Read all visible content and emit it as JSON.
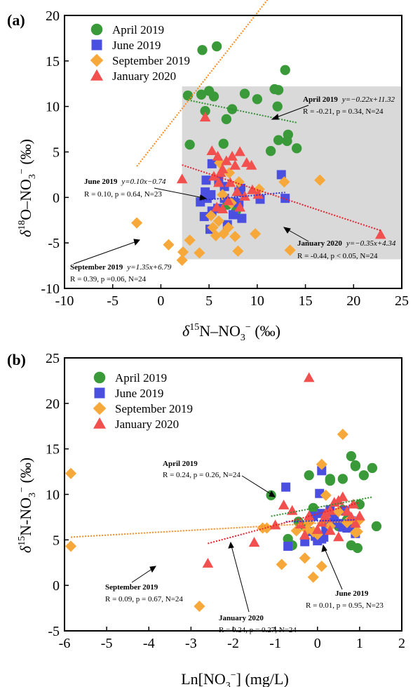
{
  "colors": {
    "april": "#3a9a3a",
    "june": "#4b4fe0",
    "september": "#f6a83a",
    "january": "#f2504e",
    "band": "#d9d9d9",
    "trend_april": "#2f8f2f",
    "trend_june": "#2f2fd0",
    "trend_september": "#ff8a1e",
    "trend_january": "#e8202a"
  },
  "chart_data": [
    {
      "panel": "(a)",
      "type": "scatter",
      "xlim": [
        -10,
        25
      ],
      "ylim": [
        -10,
        20
      ],
      "xticks": [
        -10,
        -5,
        0,
        5,
        10,
        15,
        20,
        25
      ],
      "yticks": [
        -10,
        -5,
        0,
        5,
        10,
        15,
        20
      ],
      "xlabel": {
        "pre": "δ",
        "sup": "15",
        "mid": "N–NO",
        "sub": "3",
        "sup2": "−",
        "post": " (‰)"
      },
      "ylabel": {
        "pre": "δ",
        "sup": "18",
        "mid": "O–NO",
        "sub": "3",
        "sup2": "−",
        "post": " (‰)"
      },
      "band": {
        "y_from": -6.8,
        "y_to": 12.2,
        "x_from": 2.2
      },
      "legend": [
        "April 2019",
        "June 2019",
        "September 2019",
        "January 2020"
      ],
      "series": [
        {
          "name": "April 2019",
          "marker": "circle",
          "points": [
            [
              4.3,
              16.2
            ],
            [
              5.8,
              16.6
            ],
            [
              2.8,
              11.2
            ],
            [
              4.2,
              11.3
            ],
            [
              5.0,
              11.7
            ],
            [
              5.5,
              11.1
            ],
            [
              8.7,
              11.4
            ],
            [
              10.0,
              10.8
            ],
            [
              11.8,
              11.9
            ],
            [
              12.2,
              11.8
            ],
            [
              12.9,
              14.0
            ],
            [
              7.4,
              9.7
            ],
            [
              6.8,
              8.6
            ],
            [
              12.1,
              10.0
            ],
            [
              4.6,
              9.5
            ],
            [
              3.0,
              5.8
            ],
            [
              6.5,
              5.9
            ],
            [
              11.4,
              5.1
            ],
            [
              12.2,
              6.3
            ],
            [
              13.2,
              6.9
            ],
            [
              13.1,
              6.2
            ],
            [
              14.1,
              5.4
            ],
            [
              6.9,
              -0.8
            ],
            [
              7.8,
              -1.5
            ]
          ]
        },
        {
          "name": "June 2019",
          "marker": "square",
          "points": [
            [
              5.3,
              3.7
            ],
            [
              4.7,
              1.9
            ],
            [
              6.0,
              1.8
            ],
            [
              6.6,
              1.2
            ],
            [
              12.5,
              2.5
            ],
            [
              8.3,
              1.0
            ],
            [
              8.1,
              0.6
            ],
            [
              4.6,
              0.6
            ],
            [
              5.2,
              0.3
            ],
            [
              4.8,
              -0.1
            ],
            [
              4.1,
              -0.5
            ],
            [
              6.6,
              -0.1
            ],
            [
              7.6,
              -0.5
            ],
            [
              8.1,
              -0.6
            ],
            [
              10.3,
              -0.2
            ],
            [
              12.9,
              -0.1
            ],
            [
              5.3,
              -1.5
            ],
            [
              4.5,
              -2.1
            ],
            [
              5.9,
              -1.2
            ],
            [
              7.5,
              -1.9
            ],
            [
              5.1,
              -3.5
            ],
            [
              6.9,
              -3.0
            ],
            [
              8.4,
              -2.3
            ]
          ]
        },
        {
          "name": "September 2019",
          "marker": "diamond",
          "points": [
            [
              -2.5,
              -2.8
            ],
            [
              0.8,
              -5.2
            ],
            [
              2.2,
              -6.9
            ],
            [
              2.3,
              -6.0
            ],
            [
              3.0,
              -4.7
            ],
            [
              4.0,
              -6.1
            ],
            [
              5.4,
              -3.3
            ],
            [
              5.7,
              -4.2
            ],
            [
              6.0,
              -2.6
            ],
            [
              6.5,
              -4.0
            ],
            [
              5.2,
              -2.0
            ],
            [
              7.0,
              -3.3
            ],
            [
              7.7,
              -4.3
            ],
            [
              8.0,
              -5.9
            ],
            [
              9.8,
              -4.0
            ],
            [
              6.1,
              3.8
            ],
            [
              7.1,
              2.7
            ],
            [
              8.1,
              1.7
            ],
            [
              6.4,
              0.3
            ],
            [
              7.3,
              -0.6
            ],
            [
              13.4,
              -5.8
            ],
            [
              12.8,
              1.7
            ],
            [
              16.5,
              1.9
            ],
            [
              10.2,
              0.9
            ]
          ]
        },
        {
          "name": "January 2020",
          "marker": "triangle",
          "points": [
            [
              4.6,
              8.8
            ],
            [
              2.2,
              2.0
            ],
            [
              5.3,
              5.1
            ],
            [
              5.9,
              4.5
            ],
            [
              6.8,
              4.0
            ],
            [
              7.4,
              4.5
            ],
            [
              8.2,
              5.0
            ],
            [
              7.7,
              3.5
            ],
            [
              8.9,
              3.8
            ],
            [
              9.4,
              3.5
            ],
            [
              6.4,
              3.1
            ],
            [
              5.5,
              2.3
            ],
            [
              6.2,
              2.7
            ],
            [
              7.2,
              1.6
            ],
            [
              6.0,
              1.6
            ],
            [
              7.9,
              0.6
            ],
            [
              9.5,
              0.8
            ],
            [
              8.7,
              0.1
            ],
            [
              7.0,
              -0.4
            ],
            [
              5.8,
              -1.1
            ],
            [
              6.4,
              -1.3
            ],
            [
              8.2,
              -1.1
            ],
            [
              10.1,
              0.3
            ],
            [
              22.8,
              -4.1
            ]
          ]
        }
      ],
      "trends": [
        {
          "name": "April 2019",
          "x": [
            2.8,
            14.1
          ],
          "eq_lbl": "April 2019",
          "eq": "y=−0.22x+11.32",
          "stats": "R = -0.21, p = 0.34, N=24"
        },
        {
          "name": "June 2019",
          "x": [
            4.1,
            12.9
          ],
          "eq_lbl": "June 2019",
          "eq": "y=0.10x−0.74",
          "stats": "R = 0.10, p = 0.64,  N=23"
        },
        {
          "name": "September 2019",
          "x": [
            -2.5,
            16.5
          ],
          "eq_lbl": "September 2019",
          "eq": "y=1.35x+6.79",
          "stats": "R = 0.39, p =0.06, N=24"
        },
        {
          "name": "January 2020",
          "x": [
            2.2,
            22.8
          ],
          "eq_lbl": "January 2020",
          "eq": "y=−0.35x+4.34",
          "stats": "R = -0.44, p < 0.05, N=24"
        }
      ]
    },
    {
      "panel": "(b)",
      "type": "scatter",
      "xlim": [
        -6,
        2
      ],
      "ylim": [
        -5,
        25
      ],
      "xticks": [
        -6,
        -5,
        -4,
        -3,
        -2,
        -1,
        0,
        1,
        2
      ],
      "yticks": [
        -5,
        0,
        5,
        10,
        15,
        20,
        25
      ],
      "xlabel": {
        "pre": "Ln[NO",
        "sub": "3",
        "sup2": "−",
        "post": "] (mg/L)"
      },
      "ylabel": {
        "pre": "δ",
        "sup": "15",
        "mid": "N-NO",
        "sub": "3",
        "sup2": "−",
        "post": " (‰)"
      },
      "legend": [
        "April 2019",
        "June 2019",
        "September 2019",
        "January 2020"
      ],
      "series": [
        {
          "name": "April 2019",
          "marker": "circle",
          "points": [
            [
              -1.1,
              9.9
            ],
            [
              -0.7,
              5.1
            ],
            [
              -0.6,
              4.4
            ],
            [
              -0.2,
              12.1
            ],
            [
              0.3,
              11.7
            ],
            [
              0.3,
              11.5
            ],
            [
              0.8,
              14.2
            ],
            [
              0.9,
              13.2
            ],
            [
              0.9,
              13.1
            ],
            [
              1.1,
              12.1
            ],
            [
              1.3,
              12.9
            ],
            [
              0.6,
              11.7
            ],
            [
              -0.45,
              7.0
            ],
            [
              -0.3,
              6.5
            ],
            [
              -0.1,
              8.5
            ],
            [
              0.2,
              7.0
            ],
            [
              0.6,
              8.3
            ],
            [
              0.7,
              7.2
            ],
            [
              1.0,
              8.9
            ],
            [
              0.5,
              6.5
            ],
            [
              0.8,
              4.4
            ],
            [
              0.95,
              4.1
            ],
            [
              1.4,
              6.5
            ],
            [
              -0.05,
              5.7
            ]
          ]
        },
        {
          "name": "June 2019",
          "marker": "square",
          "points": [
            [
              -0.75,
              10.8
            ],
            [
              0.1,
              12.6
            ],
            [
              0.05,
              10.1
            ],
            [
              -0.3,
              4.8
            ],
            [
              -0.7,
              4.3
            ],
            [
              -0.1,
              7.6
            ],
            [
              0.1,
              5.1
            ],
            [
              0.2,
              6.1
            ],
            [
              0.3,
              8.3
            ],
            [
              0.5,
              6.8
            ],
            [
              0.65,
              8.2
            ],
            [
              0.7,
              6.3
            ],
            [
              0.8,
              7.1
            ],
            [
              0.0,
              4.9
            ],
            [
              -0.05,
              5.4
            ],
            [
              0.15,
              5.3
            ],
            [
              0.4,
              7.7
            ],
            [
              0.9,
              5.7
            ],
            [
              0.6,
              6.4
            ],
            [
              0.3,
              6.9
            ],
            [
              -0.2,
              5.9
            ],
            [
              0.1,
              7.9
            ],
            [
              0.85,
              6.6
            ]
          ]
        },
        {
          "name": "September 2019",
          "marker": "diamond",
          "points": [
            [
              -5.85,
              12.3
            ],
            [
              -5.85,
              4.3
            ],
            [
              -2.8,
              -2.3
            ],
            [
              -1.3,
              6.3
            ],
            [
              -1.2,
              6.3
            ],
            [
              -0.85,
              2.3
            ],
            [
              -0.5,
              6.0
            ],
            [
              -0.3,
              3.0
            ],
            [
              -0.2,
              6.9
            ],
            [
              -0.1,
              5.9
            ],
            [
              0.1,
              13.3
            ],
            [
              0.2,
              9.9
            ],
            [
              0.3,
              6.5
            ],
            [
              0.5,
              8.1
            ],
            [
              0.6,
              16.6
            ],
            [
              0.7,
              6.9
            ],
            [
              0.8,
              7.3
            ],
            [
              0.9,
              5.8
            ],
            [
              1.0,
              7.2
            ],
            [
              0.0,
              5.6
            ],
            [
              0.1,
              2.1
            ],
            [
              -0.1,
              0.9
            ],
            [
              0.95,
              5.9
            ],
            [
              -0.25,
              6.1
            ]
          ]
        },
        {
          "name": "January 2020",
          "marker": "triangle",
          "points": [
            [
              -0.2,
              22.8
            ],
            [
              -2.6,
              2.4
            ],
            [
              -1.5,
              4.7
            ],
            [
              -1.0,
              6.6
            ],
            [
              -0.8,
              8.8
            ],
            [
              -0.6,
              8.2
            ],
            [
              -0.4,
              6.7
            ],
            [
              -0.2,
              7.6
            ],
            [
              0.0,
              6.1
            ],
            [
              0.1,
              6.9
            ],
            [
              0.2,
              7.4
            ],
            [
              0.3,
              8.2
            ],
            [
              0.4,
              9.1
            ],
            [
              0.5,
              9.3
            ],
            [
              0.6,
              9.7
            ],
            [
              0.7,
              8.1
            ],
            [
              0.8,
              7.5
            ],
            [
              0.9,
              6.8
            ],
            [
              1.0,
              7.6
            ],
            [
              0.2,
              7.9
            ],
            [
              0.3,
              6.0
            ],
            [
              0.5,
              5.3
            ],
            [
              -0.3,
              5.5
            ],
            [
              0.85,
              8.9
            ]
          ]
        }
      ],
      "trends": [
        {
          "name": "April 2019",
          "x": [
            -1.1,
            1.3
          ],
          "y": [
            7.6,
            9.7
          ],
          "eq_lbl": "April 2019",
          "stats": "R = 0.24, p = 0.26, N=24"
        },
        {
          "name": "June 2019",
          "x": [
            -0.75,
            0.9
          ],
          "y": [
            7.0,
            7.2
          ],
          "eq_lbl": "June 2019",
          "stats": "R = 0.01, p = 0.95, N=23"
        },
        {
          "name": "September 2019",
          "x": [
            -5.85,
            1.0
          ],
          "y": [
            5.3,
            7.1
          ],
          "eq_lbl": "September 2019",
          "stats": "R = 0.09, p = 0.67, N=24"
        },
        {
          "name": "January 2020",
          "x": [
            -2.6,
            1.0
          ],
          "y": [
            4.6,
            9.1
          ],
          "eq_lbl": "January 2020",
          "stats": "R = 0.24, p = 0.27, N=24"
        }
      ]
    }
  ]
}
